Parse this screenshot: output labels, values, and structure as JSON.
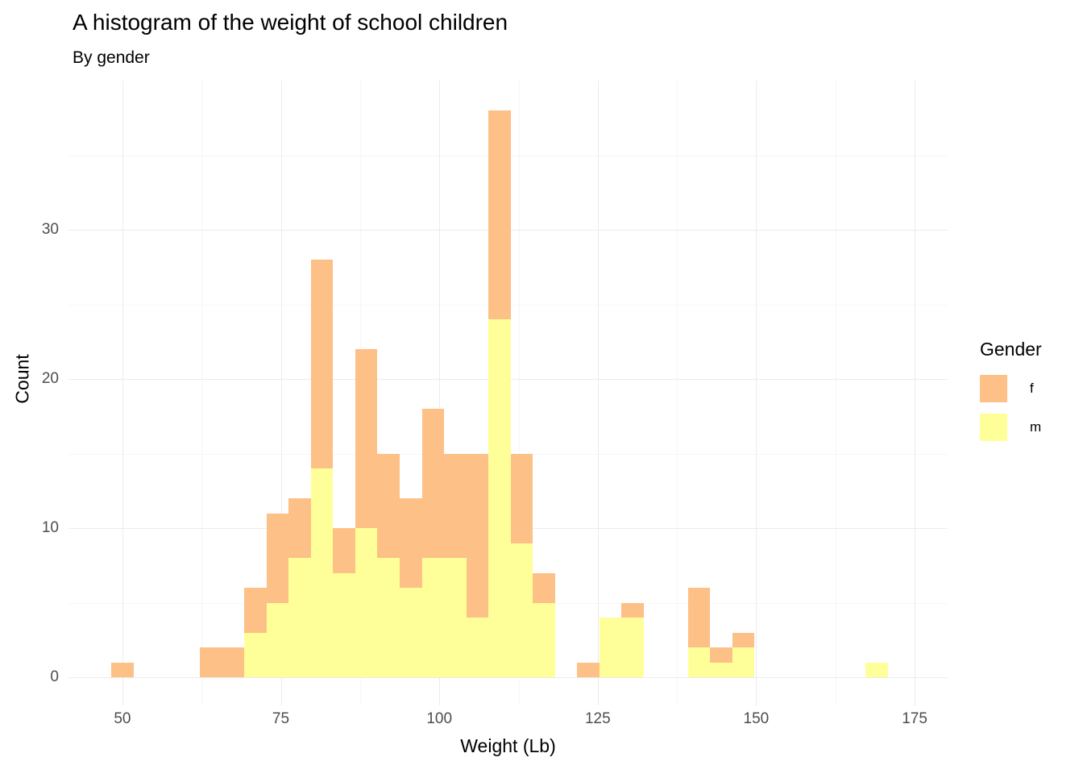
{
  "chart_data": {
    "type": "bar",
    "subtype": "stacked_histogram",
    "title": "A histogram of the weight of school children",
    "subtitle": "By gender",
    "xlabel": "Weight (Lb)",
    "ylabel": "Count",
    "legend_title": "Gender",
    "legend_position": "right",
    "grid": true,
    "background": "#FFFFFF",
    "xlim": [
      41.5,
      180.2
    ],
    "ylim": [
      0,
      40
    ],
    "x_ticks": [
      50,
      75,
      100,
      125,
      150,
      175
    ],
    "y_ticks": [
      0,
      10,
      20,
      30
    ],
    "x_minor_ticks": [
      62.5,
      87.5,
      112.5,
      137.5,
      162.5
    ],
    "y_minor_ticks": [
      5,
      15,
      25,
      35
    ],
    "bin_width": 3.5,
    "bin_centers": [
      50,
      53.5,
      57,
      60.5,
      64,
      67.5,
      71,
      74.5,
      78,
      81.5,
      85,
      88.5,
      92,
      95.5,
      99,
      102.5,
      106,
      109.5,
      113,
      116.5,
      120,
      123.5,
      127,
      130.5,
      134,
      137.5,
      141,
      144.5,
      148,
      151.5,
      155,
      158.5,
      162,
      165.5,
      169,
      172.5
    ],
    "stack_order_bottom_to_top": [
      "m",
      "f"
    ],
    "series": [
      {
        "name": "f",
        "color": "#FDC086",
        "values": [
          1,
          0,
          0,
          0,
          2,
          2,
          3,
          6,
          4,
          14,
          3,
          12,
          7,
          6,
          10,
          7,
          11,
          14,
          6,
          2,
          0,
          1,
          0,
          1,
          0,
          0,
          4,
          1,
          1,
          0,
          0,
          0,
          0,
          0,
          0,
          0
        ]
      },
      {
        "name": "m",
        "color": "#FFFF99",
        "values": [
          0,
          0,
          0,
          0,
          0,
          0,
          3,
          5,
          8,
          14,
          7,
          10,
          8,
          6,
          8,
          8,
          4,
          24,
          9,
          5,
          0,
          0,
          4,
          4,
          0,
          0,
          2,
          1,
          2,
          0,
          0,
          0,
          0,
          0,
          1,
          0
        ]
      }
    ]
  },
  "legend": {
    "title": "Gender",
    "items": [
      {
        "label": "f",
        "color": "#FDC086"
      },
      {
        "label": "m",
        "color": "#FFFF99"
      }
    ]
  },
  "colors": {
    "gridline_major": "#EBEBEB",
    "gridline_minor": "#F6F6F6",
    "axis_text": "#4D4D4D",
    "title_text": "#000000"
  }
}
